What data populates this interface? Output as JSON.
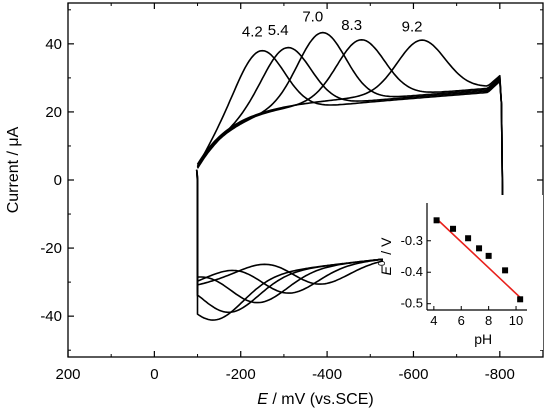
{
  "chart_data": [
    {
      "type": "line",
      "title": "",
      "xlabel_italic": "E",
      "xlabel_rest": " / mV (vs.SCE)",
      "ylabel": "Current / μA",
      "xlim": [
        200,
        -900
      ],
      "ylim": [
        -52,
        52
      ],
      "x_ticks": [
        "200",
        "0",
        "-200",
        "-400",
        "-600",
        "-800"
      ],
      "x_tick_values": [
        200,
        0,
        -200,
        -400,
        -600,
        -800
      ],
      "y_ticks": [
        "40",
        "20",
        "0",
        "-20",
        "-40"
      ],
      "y_tick_values": [
        40,
        20,
        0,
        -20,
        -40
      ],
      "grid": false,
      "series": [
        {
          "annotation": "4.2",
          "peak_x": -250,
          "peak_y": 38,
          "red_peak_x": -130
        },
        {
          "annotation": "5.4",
          "peak_x": -310,
          "peak_y": 38.5,
          "red_peak_x": -165
        },
        {
          "annotation": "7.0",
          "peak_x": -390,
          "peak_y": 42.5,
          "red_peak_x": -230
        },
        {
          "annotation": "8.3",
          "peak_x": -480,
          "peak_y": 40,
          "red_peak_x": -300
        },
        {
          "annotation": "9.2",
          "peak_x": -620,
          "peak_y": 39.5,
          "red_peak_x": -370
        }
      ]
    },
    {
      "type": "scatter",
      "xlabel": "pH",
      "ylabel_main": "E",
      "ylabel_sup": "0'",
      "ylabel_rest": " / V",
      "xlim": [
        3.5,
        10.8
      ],
      "ylim": [
        -0.52,
        -0.18
      ],
      "x_ticks": [
        "4",
        "6",
        "8",
        "10"
      ],
      "x_tick_values": [
        4,
        6,
        8,
        10
      ],
      "y_ticks": [
        "-0.3",
        "-0.4",
        "-0.5"
      ],
      "y_tick_values": [
        -0.3,
        -0.4,
        -0.5
      ],
      "points": [
        {
          "x": 4.2,
          "y": -0.235
        },
        {
          "x": 5.4,
          "y": -0.262
        },
        {
          "x": 6.5,
          "y": -0.292
        },
        {
          "x": 7.3,
          "y": -0.324
        },
        {
          "x": 8.0,
          "y": -0.348
        },
        {
          "x": 9.2,
          "y": -0.394
        },
        {
          "x": 10.3,
          "y": -0.486
        }
      ],
      "fit_line": {
        "x": [
          4.2,
          10.3
        ],
        "y": [
          -0.23,
          -0.48
        ],
        "color": "#e8201c"
      }
    }
  ]
}
